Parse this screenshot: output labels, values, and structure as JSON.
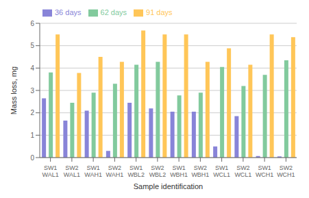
{
  "chart_data": {
    "type": "bar",
    "categories": [
      "SW1\nWAL1",
      "SW2\nWAL1",
      "SW1\nWAH1",
      "SW2\nWAH1",
      "SW1\nWBL2",
      "SW2\nWBL2",
      "SW1\nWBH1",
      "SW2\nWBH1",
      "SW1\nWCL1",
      "SW2\nWCL1",
      "SW1\nWCH1",
      "SW2\nWCH1"
    ],
    "series": [
      {
        "name": "36 days",
        "color": "#8884d8",
        "values": [
          2.65,
          1.65,
          2.1,
          0.3,
          2.45,
          2.2,
          2.05,
          2.05,
          0.5,
          1.85,
          0.07,
          0.05
        ]
      },
      {
        "name": "62 days",
        "color": "#82ca9d",
        "values": [
          3.8,
          2.45,
          2.9,
          3.3,
          4.15,
          4.28,
          2.78,
          2.9,
          4.05,
          3.2,
          3.7,
          4.35
        ]
      },
      {
        "name": "91 days",
        "color": "#ffc658",
        "values": [
          5.5,
          3.78,
          4.5,
          4.28,
          5.68,
          5.5,
          5.5,
          4.28,
          4.88,
          4.15,
          5.5,
          5.38
        ]
      }
    ],
    "xlabel": "Sample identification",
    "ylabel": "Mass loss, mg",
    "ylim": [
      0,
      6
    ],
    "yticks": [
      0,
      1,
      2,
      3,
      4,
      5,
      6
    ],
    "grid": true,
    "legend": "upper left"
  }
}
